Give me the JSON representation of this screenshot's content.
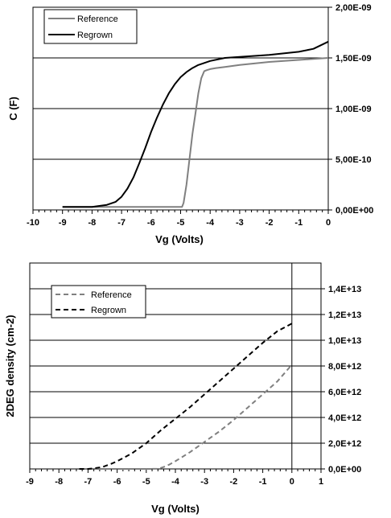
{
  "chart_data": [
    {
      "type": "line",
      "xlabel": "Vg (Volts)",
      "ylabel": "C (F)",
      "xlim": [
        -10,
        0
      ],
      "ylim": [
        0,
        2e-09
      ],
      "x_ticks": [
        "-10",
        "-9",
        "-8",
        "-7",
        "-6",
        "-5",
        "-4",
        "-3",
        "-2",
        "-1",
        "0"
      ],
      "y_ticks": [
        "0,00E+00",
        "5,00E-10",
        "1,00E-09",
        "1,50E-09",
        "2,00E-09"
      ],
      "y_axis_side": "right",
      "grid": "horizontal",
      "legend": "top-left",
      "series": [
        {
          "name": "Reference",
          "color": "#808080",
          "dash": "solid",
          "x": [
            -9,
            -8,
            -7,
            -6,
            -5.2,
            -4.95,
            -4.9,
            -4.8,
            -4.7,
            -4.6,
            -4.5,
            -4.4,
            -4.3,
            -4.2,
            -4.1,
            -4.0,
            -3.8,
            -3.5,
            -3.0,
            -2.0,
            -1.0,
            0.0
          ],
          "y": [
            3e-11,
            3e-11,
            3e-11,
            3e-11,
            3e-11,
            3e-11,
            7e-11,
            2.5e-10,
            5e-10,
            7.5e-10,
            9.5e-10,
            1.15e-09,
            1.3e-09,
            1.37e-09,
            1.38e-09,
            1.39e-09,
            1.4e-09,
            1.41e-09,
            1.43e-09,
            1.46e-09,
            1.48e-09,
            1.5e-09
          ]
        },
        {
          "name": "Regrown",
          "color": "#000000",
          "dash": "solid",
          "x": [
            -9,
            -8.5,
            -8,
            -7.5,
            -7.2,
            -7.0,
            -6.8,
            -6.6,
            -6.4,
            -6.2,
            -6.0,
            -5.8,
            -5.6,
            -5.4,
            -5.2,
            -5.0,
            -4.8,
            -4.6,
            -4.4,
            -4.2,
            -4.0,
            -3.5,
            -3.0,
            -2.0,
            -1.0,
            -0.5,
            0.0
          ],
          "y": [
            3e-11,
            3e-11,
            3e-11,
            5e-11,
            8e-11,
            1.3e-10,
            2.1e-10,
            3.2e-10,
            4.6e-10,
            6.1e-10,
            7.7e-10,
            9.1e-10,
            1.04e-09,
            1.15e-09,
            1.24e-09,
            1.31e-09,
            1.36e-09,
            1.4e-09,
            1.43e-09,
            1.45e-09,
            1.47e-09,
            1.5e-09,
            1.51e-09,
            1.53e-09,
            1.56e-09,
            1.59e-09,
            1.66e-09
          ]
        }
      ]
    },
    {
      "type": "line",
      "xlabel": "Vg (Volts)",
      "ylabel": "2DEG density (cm-2)",
      "xlim": [
        -9,
        1
      ],
      "ylim": [
        0,
        16000000000000.0
      ],
      "x_ticks": [
        "-9",
        "-8",
        "-7",
        "-6",
        "-5",
        "-4",
        "-3",
        "-2",
        "-1",
        "0",
        "1"
      ],
      "y_ticks": [
        "0,0E+00",
        "2,0E+12",
        "4,0E+12",
        "6,0E+12",
        "8,0E+12",
        "1,0E+13",
        "1,2E+13",
        "1,4E+13"
      ],
      "y_axis_side": "right",
      "grid": "horizontal",
      "vertical_line_at_x": 0,
      "legend": "top-left",
      "series": [
        {
          "name": "Reference",
          "color": "#808080",
          "dash": "dashed",
          "x": [
            -7,
            -6,
            -5,
            -4.6,
            -4.4,
            -4.2,
            -4.0,
            -3.5,
            -3.0,
            -2.5,
            -2.0,
            -1.5,
            -1.0,
            -0.5,
            0.0
          ],
          "y": [
            0,
            0,
            0,
            10000000000.0,
            150000000000.0,
            350000000000.0,
            600000000000.0,
            1300000000000.0,
            2100000000000.0,
            2900000000000.0,
            3800000000000.0,
            4800000000000.0,
            5800000000000.0,
            6800000000000.0,
            8100000000000.0
          ]
        },
        {
          "name": "Regrown",
          "color": "#000000",
          "dash": "dashed",
          "x": [
            -7.3,
            -7.0,
            -6.8,
            -6.5,
            -6.2,
            -6.0,
            -5.5,
            -5.0,
            -4.5,
            -4.0,
            -3.5,
            -3.0,
            -2.5,
            -2.0,
            -1.5,
            -1.0,
            -0.5,
            0.0
          ],
          "y": [
            0,
            0,
            50000000000.0,
            150000000000.0,
            400000000000.0,
            600000000000.0,
            1200000000000.0,
            2000000000000.0,
            3000000000000.0,
            3900000000000.0,
            4800000000000.0,
            5800000000000.0,
            6800000000000.0,
            7800000000000.0,
            8800000000000.0,
            9800000000000.0,
            10700000000000.0,
            11300000000000.0
          ]
        }
      ]
    }
  ]
}
